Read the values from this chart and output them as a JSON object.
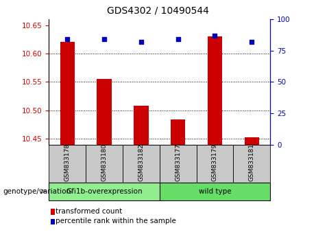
{
  "title": "GDS4302 / 10490544",
  "samples": [
    "GSM833178",
    "GSM833180",
    "GSM833182",
    "GSM833177",
    "GSM833179",
    "GSM833181"
  ],
  "red_values": [
    10.62,
    10.555,
    10.508,
    10.484,
    10.63,
    10.453
  ],
  "blue_values": [
    84,
    84,
    82,
    84,
    87,
    82
  ],
  "ylim_left": [
    10.44,
    10.66
  ],
  "ylim_right": [
    0,
    100
  ],
  "yticks_left": [
    10.45,
    10.5,
    10.55,
    10.6,
    10.65
  ],
  "yticks_right": [
    0,
    25,
    50,
    75,
    100
  ],
  "groups": [
    {
      "label": "Gfi1b-overexpression",
      "span": [
        0,
        3
      ],
      "color": "#90EE90"
    },
    {
      "label": "wild type",
      "span": [
        3,
        6
      ],
      "color": "#66DD66"
    }
  ],
  "group_label_prefix": "genotype/variation",
  "legend_red": "transformed count",
  "legend_blue": "percentile rank within the sample",
  "bar_color": "#CC0000",
  "dot_color": "#0000BB",
  "left_axis_color": "#CC0000",
  "right_axis_color": "#0000BB",
  "tick_bg_color": "#C8C8C8",
  "plot_bg_color": "#FFFFFF"
}
